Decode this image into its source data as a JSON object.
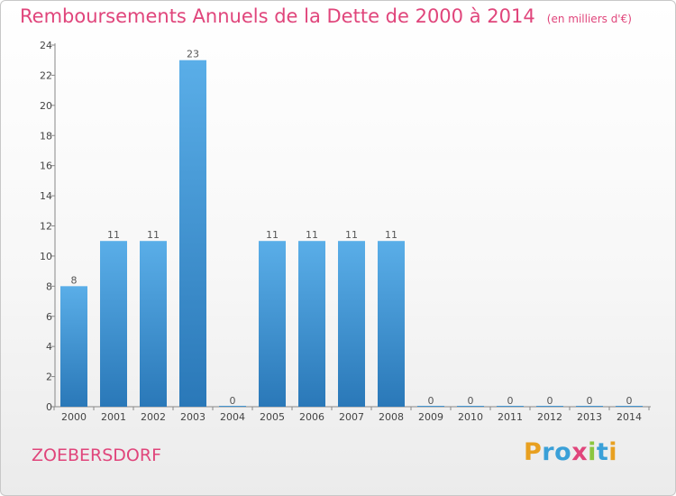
{
  "title": "Remboursements Annuels de la Dette de 2000 à 2014",
  "subtitle": "(en milliers d'€)",
  "commune": "ZOEBERSDORF",
  "brand": {
    "text": "Proxiti",
    "letters": [
      {
        "ch": "P",
        "color": "#e8a020"
      },
      {
        "ch": "r",
        "color": "#3aa0d8"
      },
      {
        "ch": "o",
        "color": "#3aa0d8"
      },
      {
        "ch": "x",
        "color": "#e0457b"
      },
      {
        "ch": "i",
        "color": "#8cc63f"
      },
      {
        "ch": "t",
        "color": "#3aa0d8"
      },
      {
        "ch": "i",
        "color": "#e8a020"
      }
    ]
  },
  "colors": {
    "bar_top": "#5aaee8",
    "bar_bottom": "#2a78b8",
    "axis": "#888888",
    "title": "#e0457b"
  },
  "chart_data": {
    "type": "bar",
    "categories": [
      "2000",
      "2001",
      "2002",
      "2003",
      "2004",
      "2005",
      "2006",
      "2007",
      "2008",
      "2009",
      "2010",
      "2011",
      "2012",
      "2013",
      "2014"
    ],
    "values": [
      8,
      11,
      11,
      23,
      0,
      11,
      11,
      11,
      11,
      0,
      0,
      0,
      0,
      0,
      0
    ],
    "ylim": [
      0,
      24
    ],
    "yticks": [
      0,
      2,
      4,
      6,
      8,
      10,
      12,
      14,
      16,
      18,
      20,
      22,
      24
    ],
    "data_labels": [
      "8",
      "11",
      "11",
      "23",
      "0",
      "11",
      "11",
      "11",
      "11",
      "0",
      "0",
      "0",
      "0",
      "0",
      "0"
    ],
    "grid": false,
    "legend": "none"
  }
}
